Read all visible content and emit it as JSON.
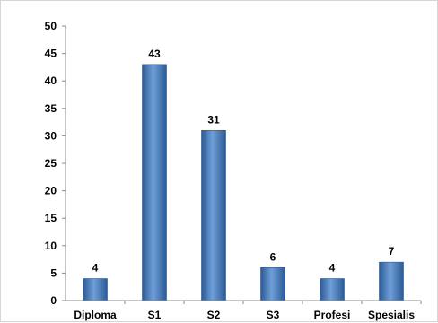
{
  "chart_data": {
    "type": "bar",
    "categories": [
      "Diploma",
      "S1",
      "S2",
      "S3",
      "Profesi",
      "Spesialis"
    ],
    "values": [
      4,
      43,
      31,
      6,
      4,
      7
    ],
    "y_ticks": [
      "0",
      "5",
      "10",
      "15",
      "20",
      "25",
      "30",
      "35",
      "40",
      "45",
      "50"
    ],
    "data_labels": [
      "4",
      "43",
      "31",
      "6",
      "4",
      "7"
    ],
    "title": "",
    "xlabel": "",
    "ylabel": "",
    "ylim": [
      0,
      50
    ],
    "grid": false,
    "legend": "none",
    "colors": {
      "bar_light": "#6f9fd8",
      "bar_mid": "#4a7ebb",
      "bar_dark": "#2c5a94",
      "axis": "#8c8c8c"
    }
  }
}
